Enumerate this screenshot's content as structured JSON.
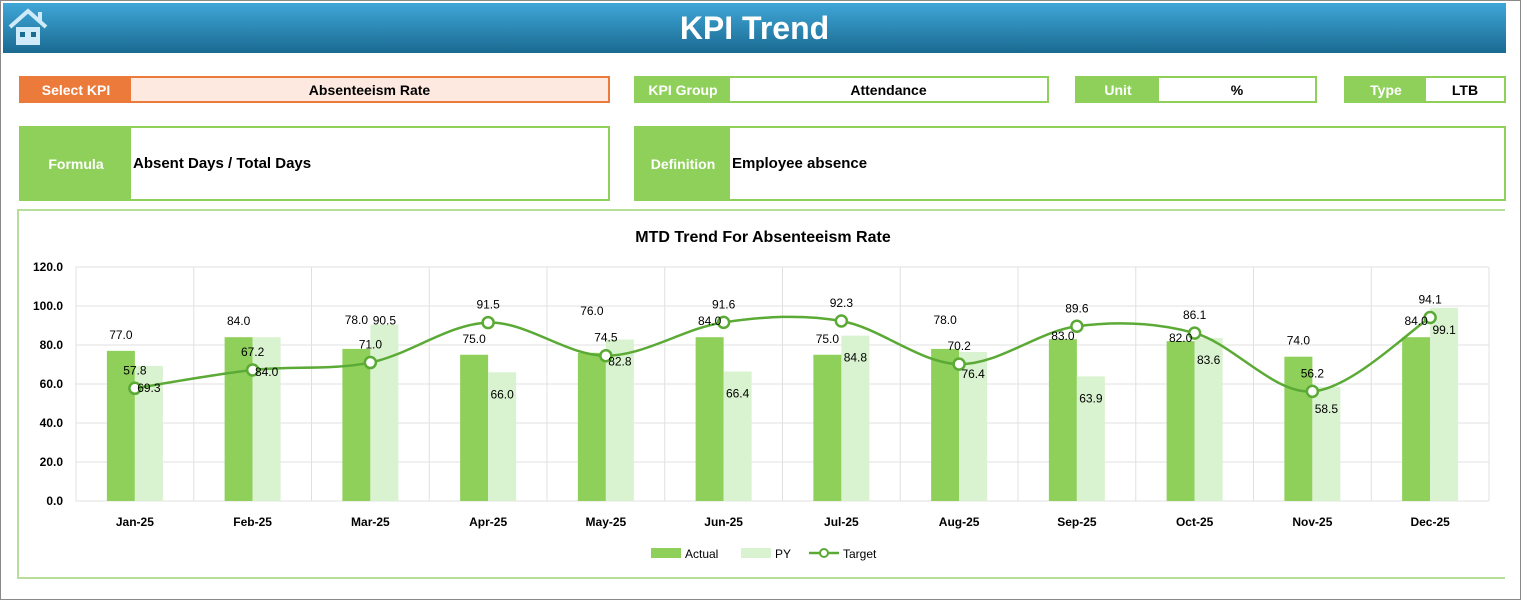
{
  "header": {
    "title": "KPI Trend",
    "home_icon": "home-icon"
  },
  "fields": {
    "select_kpi": {
      "label": "Select KPI",
      "value": "Absenteeism Rate"
    },
    "kpi_group": {
      "label": "KPI Group",
      "value": "Attendance"
    },
    "unit": {
      "label": "Unit",
      "value": "%"
    },
    "type": {
      "label": "Type",
      "value": "LTB"
    },
    "formula": {
      "label": "Formula",
      "value": "Absent Days / Total Days"
    },
    "definition": {
      "label": "Definition",
      "value": "Employee absence"
    }
  },
  "colors": {
    "actual": "#8fd05a",
    "py": "#d9f2cf",
    "target": "#5aaa35",
    "select_accent": "#ec7a3a"
  },
  "chart_data": {
    "type": "bar",
    "title": "MTD Trend For Absenteeism Rate",
    "categories": [
      "Jan-25",
      "Feb-25",
      "Mar-25",
      "Apr-25",
      "May-25",
      "Jun-25",
      "Jul-25",
      "Aug-25",
      "Sep-25",
      "Oct-25",
      "Nov-25",
      "Dec-25"
    ],
    "ylim": [
      0,
      120
    ],
    "yticks": [
      "0.0",
      "20.0",
      "40.0",
      "60.0",
      "80.0",
      "100.0",
      "120.0"
    ],
    "grid": true,
    "legend": "bottom",
    "series": [
      {
        "name": "Actual",
        "type": "bar",
        "values": [
          77.0,
          84.0,
          78.0,
          75.0,
          76.0,
          84.0,
          75.0,
          78.0,
          83.0,
          82.0,
          74.0,
          84.0
        ]
      },
      {
        "name": "PY",
        "type": "bar",
        "values": [
          69.3,
          84.0,
          90.5,
          66.0,
          82.8,
          66.4,
          84.8,
          76.4,
          63.9,
          83.6,
          58.5,
          99.1
        ]
      },
      {
        "name": "Target",
        "type": "line",
        "values": [
          57.8,
          67.2,
          71.0,
          91.5,
          74.5,
          91.6,
          92.3,
          70.2,
          89.6,
          86.1,
          56.2,
          94.1
        ]
      }
    ]
  }
}
